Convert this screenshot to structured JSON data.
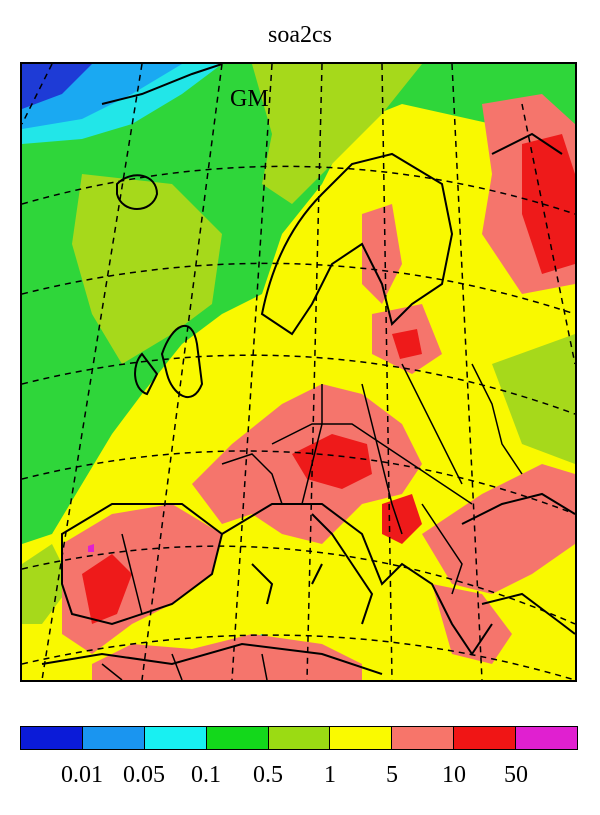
{
  "title": "soa2cs",
  "inset_label": "GM",
  "colorbar": {
    "colors": [
      "#0b1bd8",
      "#1a95f0",
      "#18f0f2",
      "#13d81b",
      "#9bdb13",
      "#fafa00",
      "#f7756a",
      "#f01515",
      "#e020d0"
    ],
    "tick_labels": [
      "0.01",
      "0.05",
      "0.1",
      "0.5",
      "1",
      "5",
      "10",
      "50"
    ]
  },
  "map_colors": {
    "deep_blue": "#1e3bd6",
    "light_blue": "#1aa9f2",
    "cyan": "#22e6e8",
    "green": "#2fd63a",
    "yellow_green": "#a6d91b",
    "yellow": "#f9f900",
    "salmon": "#f5756c",
    "red": "#ee1a1a"
  }
}
